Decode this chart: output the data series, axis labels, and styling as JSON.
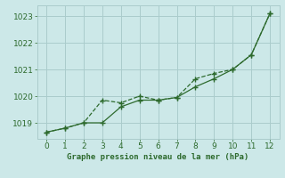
{
  "x": [
    0,
    1,
    2,
    3,
    4,
    5,
    6,
    7,
    8,
    9,
    10,
    11,
    12
  ],
  "line1": [
    1018.65,
    1018.8,
    1019.0,
    1019.85,
    1019.75,
    1020.0,
    1019.85,
    1019.95,
    1020.65,
    1020.85,
    1021.0,
    1021.55,
    1023.1
  ],
  "line2": [
    1018.65,
    1018.8,
    1019.0,
    1019.0,
    1019.6,
    1019.85,
    1019.85,
    1019.95,
    1020.35,
    1020.65,
    1021.0,
    1021.55,
    1023.1
  ],
  "line_color": "#2d6a2d",
  "bg_color": "#cce8e8",
  "grid_color": "#aacccc",
  "xlabel": "Graphe pression niveau de la mer (hPa)",
  "ylim": [
    1018.4,
    1023.4
  ],
  "yticks": [
    1019,
    1020,
    1021,
    1022,
    1023
  ],
  "xlim": [
    -0.5,
    12.5
  ],
  "xticks": [
    0,
    1,
    2,
    3,
    4,
    5,
    6,
    7,
    8,
    9,
    10,
    11,
    12
  ]
}
